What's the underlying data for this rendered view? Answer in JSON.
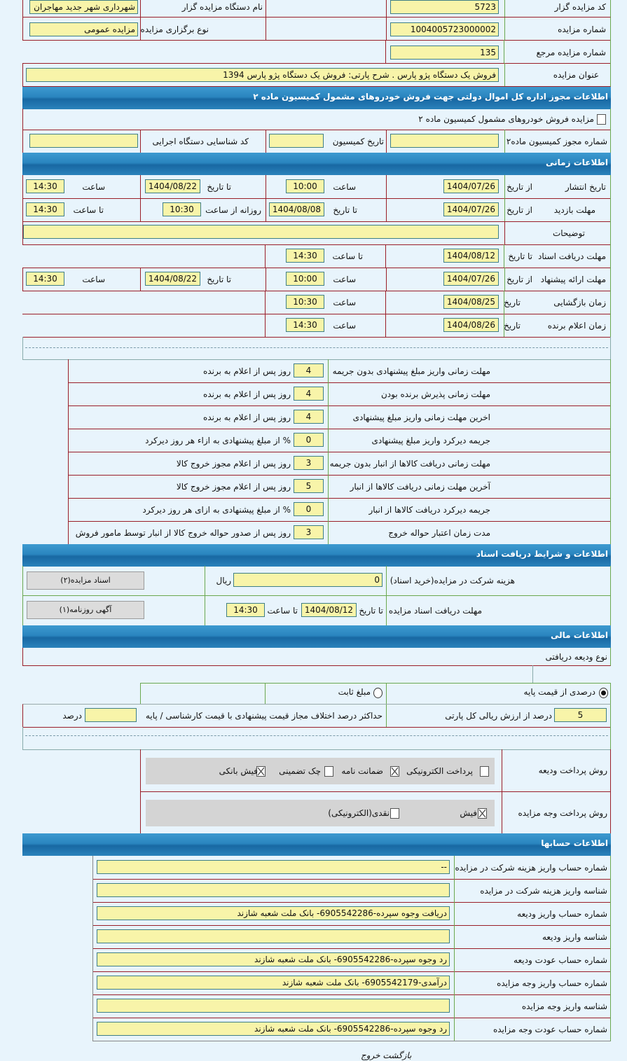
{
  "general": {
    "auctioneer_code_label": "کد مزایده گزار",
    "auctioneer_code": "5723",
    "auctioneer_name_label": "نام دستگاه مزایده گزار",
    "auctioneer_name": "شهرداری شهر جدید مهاجران",
    "auction_number_label": "شماره مزایده",
    "auction_number": "1004005723000002",
    "auction_type_label": "نوع برگزاری مزایده",
    "auction_type": "مزایده عمومی",
    "reference_label": "شماره مزایده مرجع",
    "reference": "135",
    "title_label": "عنوان مزایده",
    "title": "فروش یک دستگاه پژو پارس . شرح پارتی: فروش یک دستگاه پژو پارس 1394"
  },
  "commission": {
    "section_title": "اطلاعات مجوز اداره کل اموال دولتی جهت فروش خودروهای مشمول کمیسیون ماده ۲",
    "checkbox_label": "مزایده فروش خودروهای مشمول کمیسیون ماده ۲",
    "checkbox_checked": false,
    "permit_label": "شماره مجوز کمیسیون ماده۲",
    "permit": "",
    "date_label": "تاریخ کمیسیون",
    "date": "",
    "exec_code_label": "کد شناسایی دستگاه اجرایی",
    "exec_code": ""
  },
  "timing": {
    "section_title": "اطلاعات زمانی",
    "publish": {
      "label": "تاریخ انتشار",
      "from_label": "از تاریخ",
      "from": "1404/07/26",
      "from_time_label": "ساعت",
      "from_time": "10:00",
      "to_label": "تا تاریخ",
      "to": "1404/08/22",
      "to_time_label": "ساعت",
      "to_time": "14:30"
    },
    "visit": {
      "label": "مهلت بازدید",
      "from_label": "از تاریخ",
      "from": "1404/07/26",
      "to_label": "تا تاریخ",
      "to": "1404/08/08",
      "daily_from_label": "روزانه از ساعت",
      "daily_from": "10:30",
      "daily_to_label": "تا ساعت",
      "daily_to": "14:30"
    },
    "description": {
      "label": "توضیحات",
      "value": ""
    },
    "docs": {
      "label": "مهلت دریافت اسناد",
      "to_label": "تا تاریخ",
      "to": "1404/08/12",
      "to_time_label": "تا ساعت",
      "to_time": "14:30"
    },
    "offer": {
      "label": "مهلت ارائه پیشنهاد",
      "from_label": "از تاریخ",
      "from": "1404/07/26",
      "from_time_label": "ساعت",
      "from_time": "10:00",
      "to_label": "تا تاریخ",
      "to": "1404/08/22",
      "to_time_label": "ساعت",
      "to_time": "14:30"
    },
    "opening": {
      "label": "زمان بازگشایی",
      "date_label": "تاریخ",
      "date": "1404/08/25",
      "time_label": "ساعت",
      "time": "10:30"
    },
    "winner": {
      "label": "زمان اعلام برنده",
      "date_label": "تاریخ",
      "date": "1404/08/26",
      "time_label": "ساعت",
      "time": "14:30"
    }
  },
  "rules": [
    {
      "label": "مهلت زمانی واریز مبلغ پیشنهادی بدون جریمه",
      "value": "4",
      "unit": "روز پس از اعلام به برنده"
    },
    {
      "label": "مهلت زمانی پذیرش برنده بودن",
      "value": "4",
      "unit": "روز پس از اعلام به برنده"
    },
    {
      "label": "اخرین مهلت زمانی واریز مبلغ پیشنهادی",
      "value": "4",
      "unit": "روز پس از اعلام به برنده"
    },
    {
      "label": "جریمه دیرکرد واریز مبلغ پیشنهادی",
      "value": "0",
      "unit": "% از مبلغ پیشنهادی به ازاء هر روز دیرکرد"
    },
    {
      "label": "مهلت زمانی دریافت کالاها از انبار بدون جریمه",
      "value": "3",
      "unit": "روز پس از اعلام مجوز خروج کالا"
    },
    {
      "label": "آخرین مهلت زمانی دریافت کالاها از انبار",
      "value": "5",
      "unit": "روز پس از اعلام مجوز خروج کالا"
    },
    {
      "label": "جریمه دیرکرد دریافت کالاها از انبار",
      "value": "0",
      "unit": "% از مبلغ پیشنهادی به ازای هر روز دیرکرد"
    },
    {
      "label": "مدت زمان اعتبار حواله خروج",
      "value": "3",
      "unit": "روز پس از صدور حواله خروج کالا از انبار توسط مامور فروش"
    }
  ],
  "documents": {
    "section_title": "اطلاعات و شرایط دریافت اسناد",
    "fee_label": "هزینه شرکت در مزایده(خرید اسناد)",
    "fee": "0",
    "fee_unit": "ریال",
    "docs_button": "اسناد مزایده(۲)",
    "deadline_label": "مهلت دریافت اسناد مزایده",
    "to_date_label": "تا تاریخ",
    "to_date": "1404/08/12",
    "to_time_label": "تا ساعت",
    "to_time": "14:30",
    "ad_button": "آگهی روزنامه(۱)"
  },
  "finance": {
    "section_title": "اطلاعات مالی",
    "deposit_type_label": "نوع ودیعه دریافتی",
    "radio_percent": "درصدی از قیمت پایه",
    "radio_fixed": "مبلغ ثابت",
    "selected": "percent",
    "percent": "5",
    "percent_label": "درصد از ارزش ریالی کل پارتی",
    "max_diff_label": "حداکثر درصد اختلاف مجاز قیمت پیشنهادی با قیمت کارشناسی / پایه",
    "max_diff": "",
    "max_diff_unit": "درصد",
    "deposit_method_label": "روش پرداخت ودیعه",
    "deposit_methods": [
      {
        "label": "پرداخت الکترونیکی",
        "checked": false
      },
      {
        "label": "ضمانت نامه",
        "checked": true
      },
      {
        "label": "چک تضمینی",
        "checked": false
      },
      {
        "label": "فیش بانکی",
        "checked": true
      }
    ],
    "payment_method_label": "روش پرداخت وجه مزایده",
    "payment_methods": [
      {
        "label": "فیش",
        "checked": true
      },
      {
        "label": "نقدی(الکترونیکی)",
        "checked": false
      }
    ]
  },
  "accounts": {
    "section_title": "اطلاعات حسابها",
    "rows": [
      {
        "label": "شماره حساب واریز هزینه شرکت در مزایده",
        "value": "--"
      },
      {
        "label": "شناسه واریز هزینه شرکت در مزایده",
        "value": ""
      },
      {
        "label": "شماره حساب واریز ودیعه",
        "value": "دریافت وجوه سپرده-6905542286- بانک ملت شعبه شازند"
      },
      {
        "label": "شناسه واریز ودیعه",
        "value": ""
      },
      {
        "label": "شماره حساب عودت ودیعه",
        "value": "رد وجوه سپرده-6905542286- بانک ملت شعبه شازند"
      },
      {
        "label": "شماره حساب واریز وجه مزایده",
        "value": "درآمدی-6905542179- بانک ملت شعبه شازند"
      },
      {
        "label": "شناسه واریز وجه مزایده",
        "value": ""
      },
      {
        "label": "شماره حساب عودت وجه مزایده",
        "value": "رد وجوه سپرده-6905542286- بانک ملت شعبه شازند"
      }
    ]
  },
  "footer": {
    "back": "بازگشت",
    "exit": "خروج"
  },
  "colors": {
    "background": "#e8f4fc",
    "input": "#f8f4a9",
    "header": "#2a85bf",
    "border_red": "#9a1e28",
    "border_green": "#6aa84f"
  }
}
